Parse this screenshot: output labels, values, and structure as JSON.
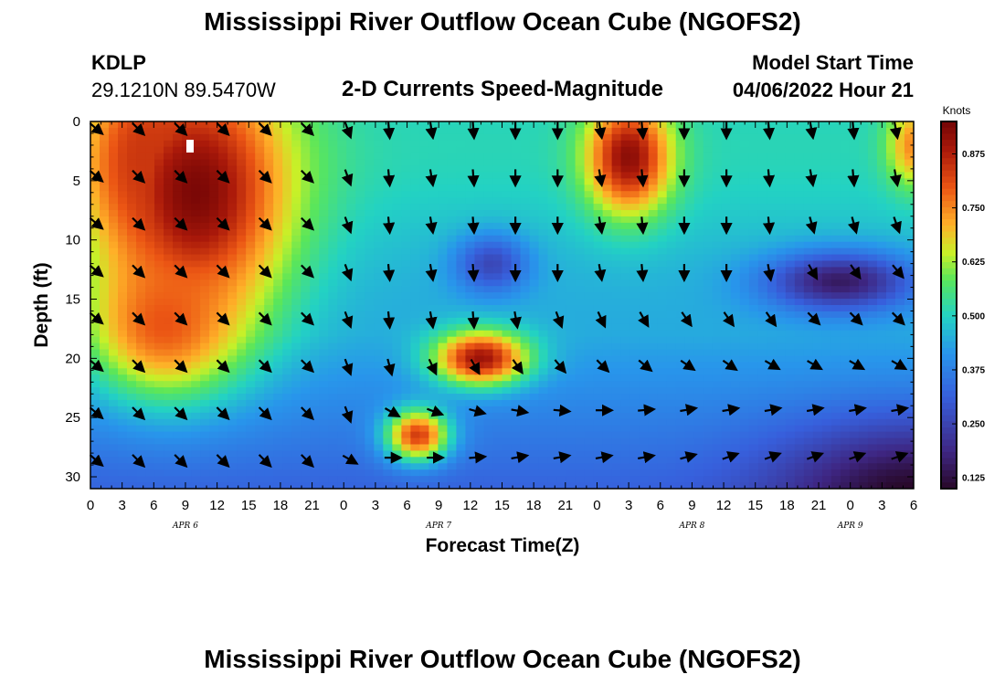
{
  "header": {
    "title": "Mississippi River Outflow Ocean Cube (NGOFS2)",
    "station_id": "KDLP",
    "station_coords": "29.1210N  89.5470W",
    "subtitle": "2-D Currents Speed-Magnitude",
    "model_start_label": "Model Start Time",
    "model_start_value": "04/06/2022 Hour 21"
  },
  "footer": {
    "title": "Mississippi River Outflow Ocean Cube (NGOFS2)"
  },
  "chart_data": {
    "type": "heatmap",
    "title": "2-D Currents Speed-Magnitude",
    "xlabel": "Forecast Time(Z)",
    "ylabel": "Depth (ft)",
    "xlim": [
      0,
      78
    ],
    "ylim": [
      31,
      0
    ],
    "x_tick_labels": [
      "0",
      "3",
      "6",
      "9",
      "12",
      "15",
      "18",
      "21",
      "0",
      "3",
      "6",
      "9",
      "12",
      "15",
      "18",
      "21",
      "0",
      "3",
      "6",
      "9",
      "12",
      "15",
      "18",
      "21",
      "0",
      "3",
      "6"
    ],
    "y_ticks": [
      0,
      5,
      10,
      15,
      20,
      25,
      30
    ],
    "y_tick_labels": [
      "0",
      "5",
      "10",
      "15",
      "20",
      "25",
      "30"
    ],
    "date_labels": [
      {
        "label": "APR 6",
        "hour": 9
      },
      {
        "label": "APR 7",
        "hour": 33
      },
      {
        "label": "APR 8",
        "hour": 57
      },
      {
        "label": "APR 9",
        "hour": 72
      }
    ],
    "colorbar": {
      "title": "Knots",
      "min": 0.1,
      "max": 0.95,
      "tick_values": [
        0.125,
        0.25,
        0.375,
        0.5,
        0.625,
        0.75,
        0.875
      ],
      "tick_labels": [
        "0.125",
        "0.250",
        "0.375",
        "0.500",
        "0.625",
        "0.750",
        "0.875"
      ]
    },
    "speed_blobs": [
      {
        "name": "early-maximum",
        "hour": 10,
        "depth": 6,
        "peak": 0.94,
        "sx": 9,
        "sy": 11
      },
      {
        "name": "early-upper-extension",
        "hour": 5,
        "depth": 3,
        "peak": 0.84,
        "sx": 5,
        "sy": 7
      },
      {
        "name": "early-lower-extension",
        "hour": 7,
        "depth": 17,
        "peak": 0.8,
        "sx": 7,
        "sy": 6
      },
      {
        "name": "mid-jet",
        "hour": 37,
        "depth": 20,
        "peak": 0.9,
        "sx": 4.5,
        "sy": 2.3
      },
      {
        "name": "low-core",
        "hour": 31,
        "depth": 26.5,
        "peak": 0.83,
        "sx": 3,
        "sy": 2.2
      },
      {
        "name": "surface-jet",
        "hour": 51,
        "depth": 3,
        "peak": 0.92,
        "sx": 4,
        "sy": 4.8
      },
      {
        "name": "late-surface",
        "hour": 78,
        "depth": 2,
        "peak": 0.75,
        "sx": 2.5,
        "sy": 3.5
      }
    ],
    "weak_areas": [
      {
        "name": "mid-upper-weak",
        "hour": 38,
        "depth": 12,
        "drop": 0.2,
        "sx": 3.5,
        "sy": 2.5
      },
      {
        "name": "late-weak-band",
        "hour": 71,
        "depth": 13.5,
        "drop": 0.3,
        "sx": 7,
        "sy": 2.5
      },
      {
        "name": "deep-decline",
        "hour": 78,
        "depth": 31,
        "drop": 0.22,
        "sx": 13,
        "sy": 6
      }
    ],
    "vector_hours": [
      0,
      4,
      8,
      12,
      16,
      20,
      24,
      28,
      32,
      36,
      40,
      44,
      48,
      52,
      56,
      60,
      64,
      68,
      72,
      76
    ],
    "vector_depths": [
      0,
      4,
      8,
      12,
      16,
      20,
      24,
      28
    ],
    "vector_direction_deg": [
      [
        40,
        45,
        45,
        45,
        45,
        45,
        70,
        85,
        80,
        85,
        90,
        90,
        80,
        85,
        90,
        90,
        85,
        80,
        85,
        80
      ],
      [
        40,
        45,
        45,
        45,
        45,
        45,
        70,
        85,
        80,
        85,
        90,
        90,
        80,
        85,
        90,
        90,
        85,
        80,
        85,
        80
      ],
      [
        40,
        45,
        45,
        45,
        45,
        45,
        70,
        85,
        80,
        85,
        90,
        90,
        80,
        85,
        90,
        90,
        85,
        75,
        75,
        70
      ],
      [
        40,
        45,
        45,
        45,
        45,
        45,
        70,
        85,
        80,
        85,
        90,
        90,
        80,
        85,
        90,
        90,
        80,
        60,
        55,
        50
      ],
      [
        40,
        45,
        45,
        45,
        45,
        45,
        70,
        85,
        80,
        85,
        80,
        70,
        65,
        60,
        55,
        55,
        55,
        45,
        45,
        45
      ],
      [
        40,
        45,
        45,
        45,
        45,
        45,
        70,
        75,
        65,
        60,
        55,
        50,
        45,
        40,
        35,
        35,
        30,
        30,
        30,
        30
      ],
      [
        40,
        45,
        45,
        45,
        45,
        45,
        70,
        30,
        20,
        15,
        10,
        5,
        0,
        -5,
        -10,
        -10,
        -10,
        -10,
        -10,
        -10
      ],
      [
        40,
        45,
        45,
        45,
        45,
        45,
        30,
        0,
        0,
        -5,
        -10,
        -10,
        -10,
        -10,
        -15,
        -20,
        -20,
        -20,
        -20,
        -20
      ]
    ]
  }
}
